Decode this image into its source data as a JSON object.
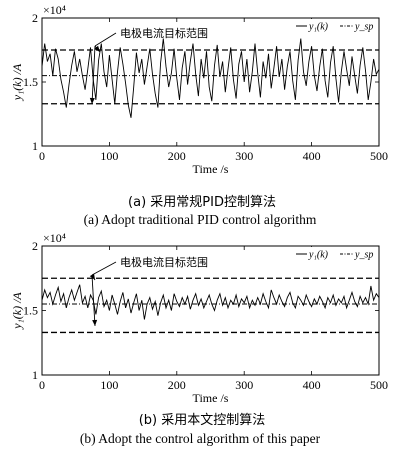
{
  "chart_data": [
    {
      "type": "line",
      "title": "",
      "xlabel": "Time /s",
      "ylabel": "y₁(k) /A",
      "scale_label": "×10⁴",
      "xlim": [
        0,
        500
      ],
      "ylim": [
        1,
        2
      ],
      "xticks": [
        "0",
        "100",
        "200",
        "300",
        "400",
        "500"
      ],
      "yticks": [
        "1",
        "1.5",
        "2"
      ],
      "legend": {
        "position": "top-right",
        "entries": [
          "y₁(k)",
          "y_sp"
        ]
      },
      "annotation": "电极电流目标范围",
      "setpoint": 1.55,
      "band": [
        1.33,
        1.75
      ],
      "series": [
        {
          "name": "y₁(k)",
          "style": "solid",
          "x": [
            0,
            4,
            8,
            12,
            16,
            20,
            24,
            28,
            32,
            36,
            40,
            44,
            48,
            52,
            56,
            60,
            64,
            68,
            72,
            76,
            80,
            84,
            88,
            92,
            96,
            100,
            104,
            108,
            112,
            116,
            120,
            124,
            128,
            132,
            136,
            140,
            144,
            148,
            152,
            156,
            160,
            164,
            168,
            172,
            176,
            180,
            184,
            188,
            192,
            196,
            200,
            204,
            208,
            212,
            216,
            220,
            224,
            228,
            232,
            236,
            240,
            244,
            248,
            252,
            256,
            260,
            264,
            268,
            272,
            276,
            280,
            284,
            288,
            292,
            296,
            300,
            304,
            308,
            312,
            316,
            320,
            324,
            328,
            332,
            336,
            340,
            344,
            348,
            352,
            356,
            360,
            364,
            368,
            372,
            376,
            380,
            384,
            388,
            392,
            396,
            400,
            404,
            408,
            412,
            416,
            420,
            424,
            428,
            432,
            436,
            440,
            444,
            448,
            452,
            456,
            460,
            464,
            468,
            472,
            476,
            480,
            484,
            488,
            492,
            496,
            500
          ],
          "y": [
            1.62,
            1.8,
            1.66,
            1.72,
            1.55,
            1.76,
            1.68,
            1.52,
            1.42,
            1.3,
            1.48,
            1.63,
            1.74,
            1.58,
            1.68,
            1.55,
            1.44,
            1.6,
            1.77,
            1.52,
            1.36,
            1.67,
            1.8,
            1.58,
            1.46,
            1.71,
            1.52,
            1.33,
            1.58,
            1.77,
            1.64,
            1.49,
            1.32,
            1.22,
            1.46,
            1.73,
            1.57,
            1.68,
            1.48,
            1.62,
            1.76,
            1.56,
            1.41,
            1.3,
            1.65,
            1.84,
            1.62,
            1.46,
            1.57,
            1.76,
            1.53,
            1.36,
            1.61,
            1.74,
            1.48,
            1.66,
            1.8,
            1.56,
            1.39,
            1.68,
            1.53,
            1.74,
            1.46,
            1.35,
            1.63,
            1.79,
            1.54,
            1.66,
            1.42,
            1.6,
            1.77,
            1.52,
            1.37,
            1.64,
            1.74,
            1.5,
            1.68,
            1.42,
            1.58,
            1.8,
            1.57,
            1.38,
            1.66,
            1.53,
            1.72,
            1.45,
            1.61,
            1.78,
            1.54,
            1.68,
            1.44,
            1.62,
            1.74,
            1.51,
            1.36,
            1.67,
            1.84,
            1.58,
            1.47,
            1.66,
            1.78,
            1.55,
            1.43,
            1.62,
            1.76,
            1.51,
            1.38,
            1.65,
            1.78,
            1.53,
            1.34,
            1.58,
            1.74,
            1.6,
            1.47,
            1.7,
            1.55,
            1.41,
            1.63,
            1.77,
            1.59,
            1.36,
            1.5,
            1.68,
            1.56,
            1.6
          ]
        }
      ]
    },
    {
      "type": "line",
      "title": "",
      "xlabel": "Time /s",
      "ylabel": "y₁(k) /A",
      "scale_label": "×10⁴",
      "xlim": [
        0,
        500
      ],
      "ylim": [
        1,
        2
      ],
      "xticks": [
        "0",
        "100",
        "200",
        "300",
        "400",
        "500"
      ],
      "yticks": [
        "1",
        "1.5",
        "2"
      ],
      "legend": {
        "position": "top-right",
        "entries": [
          "y₁(k)",
          "y_sp"
        ]
      },
      "annotation": "电极电流目标范围",
      "setpoint": 1.55,
      "band": [
        1.33,
        1.75
      ],
      "series": [
        {
          "name": "y₁(k)",
          "style": "solid",
          "x": [
            0,
            4,
            8,
            12,
            16,
            20,
            24,
            28,
            32,
            36,
            40,
            44,
            48,
            52,
            56,
            60,
            64,
            68,
            72,
            76,
            80,
            84,
            88,
            92,
            96,
            100,
            104,
            108,
            112,
            116,
            120,
            124,
            128,
            132,
            136,
            140,
            144,
            148,
            152,
            156,
            160,
            164,
            168,
            172,
            176,
            180,
            184,
            188,
            192,
            196,
            200,
            204,
            208,
            212,
            216,
            220,
            224,
            228,
            232,
            236,
            240,
            244,
            248,
            252,
            256,
            260,
            264,
            268,
            272,
            276,
            280,
            284,
            288,
            292,
            296,
            300,
            304,
            308,
            312,
            316,
            320,
            324,
            328,
            332,
            336,
            340,
            344,
            348,
            352,
            356,
            360,
            364,
            368,
            372,
            376,
            380,
            384,
            388,
            392,
            396,
            400,
            404,
            408,
            412,
            416,
            420,
            424,
            428,
            432,
            436,
            440,
            444,
            448,
            452,
            456,
            460,
            464,
            468,
            472,
            476,
            480,
            484,
            488,
            492,
            496,
            500
          ],
          "y": [
            1.58,
            1.66,
            1.6,
            1.64,
            1.55,
            1.62,
            1.68,
            1.57,
            1.63,
            1.52,
            1.6,
            1.66,
            1.58,
            1.64,
            1.7,
            1.56,
            1.61,
            1.52,
            1.62,
            1.58,
            1.47,
            1.6,
            1.65,
            1.53,
            1.58,
            1.5,
            1.62,
            1.55,
            1.47,
            1.57,
            1.64,
            1.52,
            1.59,
            1.48,
            1.56,
            1.63,
            1.5,
            1.58,
            1.43,
            1.55,
            1.6,
            1.51,
            1.57,
            1.46,
            1.56,
            1.62,
            1.52,
            1.58,
            1.5,
            1.63,
            1.57,
            1.53,
            1.6,
            1.55,
            1.61,
            1.51,
            1.58,
            1.63,
            1.54,
            1.59,
            1.52,
            1.57,
            1.62,
            1.55,
            1.5,
            1.58,
            1.63,
            1.54,
            1.6,
            1.52,
            1.58,
            1.55,
            1.62,
            1.53,
            1.59,
            1.56,
            1.61,
            1.52,
            1.58,
            1.54,
            1.6,
            1.55,
            1.63,
            1.57,
            1.52,
            1.66,
            1.6,
            1.55,
            1.62,
            1.57,
            1.53,
            1.6,
            1.64,
            1.56,
            1.52,
            1.61,
            1.58,
            1.54,
            1.62,
            1.57,
            1.53,
            1.59,
            1.55,
            1.61,
            1.57,
            1.52,
            1.6,
            1.56,
            1.62,
            1.54,
            1.59,
            1.56,
            1.61,
            1.52,
            1.58,
            1.64,
            1.57,
            1.53,
            1.61,
            1.56,
            1.6,
            1.55,
            1.69,
            1.58,
            1.63,
            1.6
          ]
        }
      ]
    }
  ],
  "captions": [
    {
      "cn": "(a) 采用常规PID控制算法",
      "en": "(a) Adopt traditional PID control algorithm"
    },
    {
      "cn": "(b) 采用本文控制算法",
      "en": "(b) Adopt the control algorithm of this paper"
    }
  ],
  "colors": {
    "line": "#000000",
    "background": "#ffffff"
  }
}
